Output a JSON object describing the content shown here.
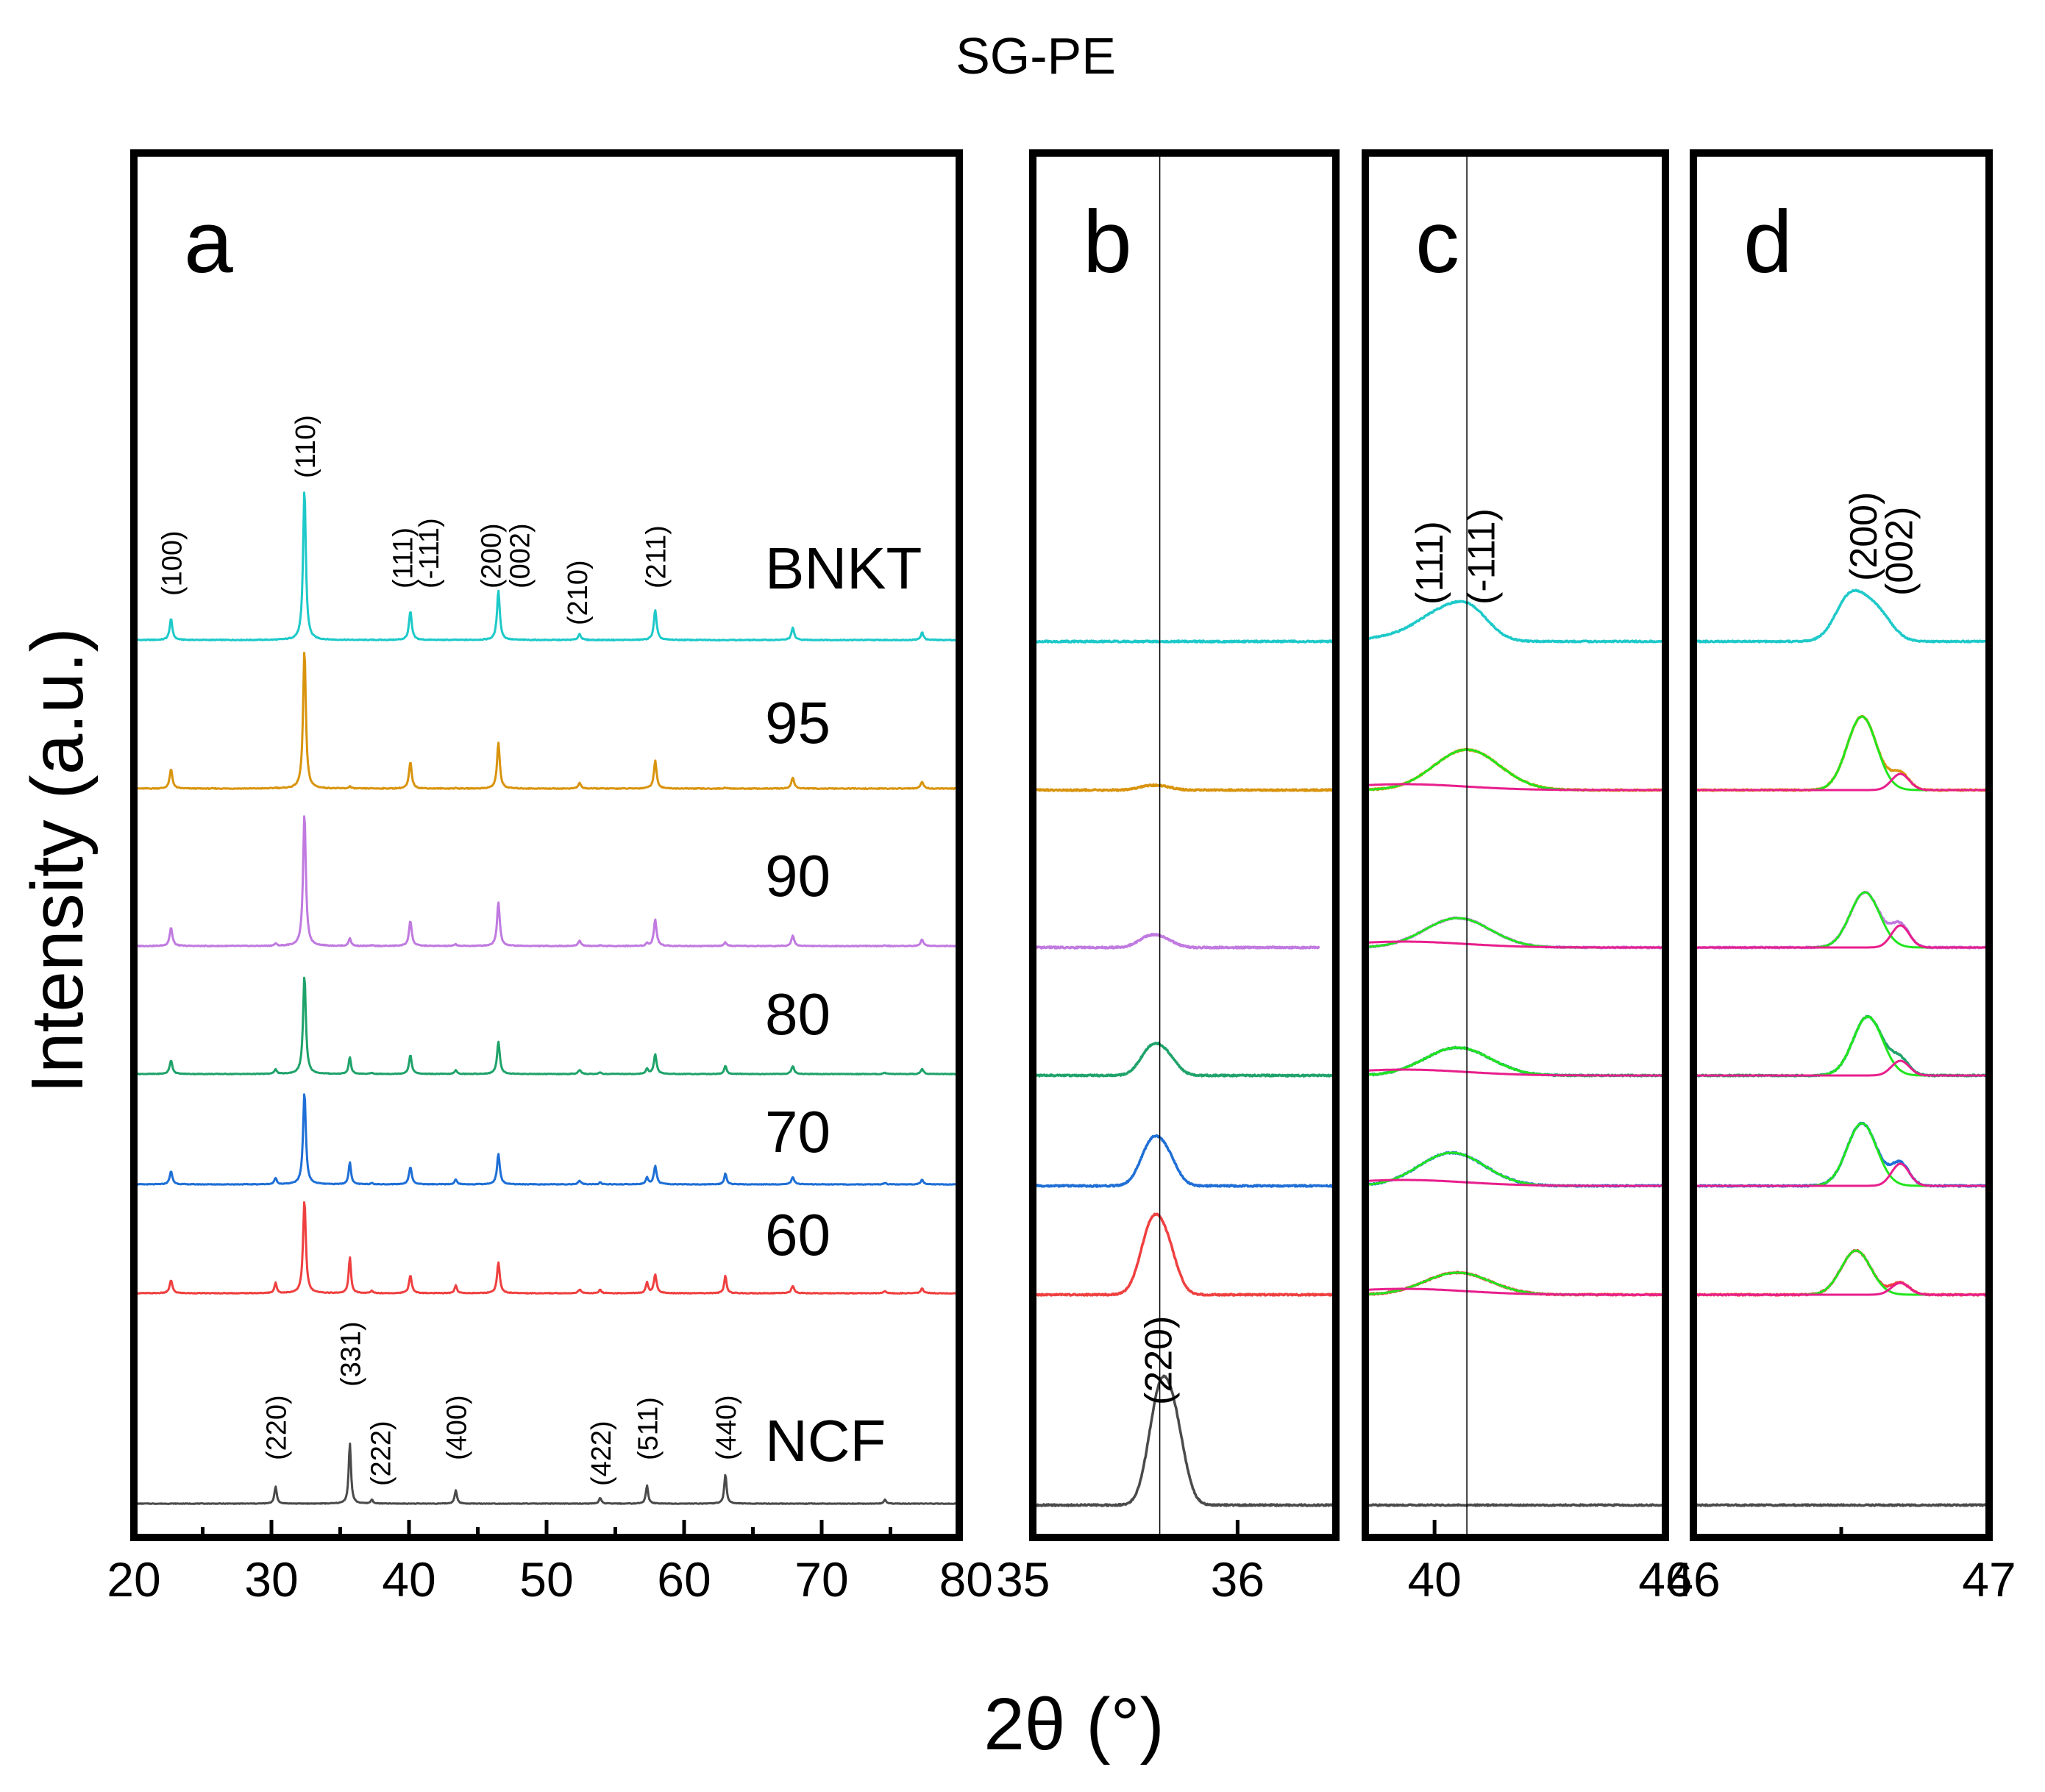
{
  "chart_data": {
    "type": "line",
    "title": "SG-PE",
    "xlabel": "2θ (°)",
    "ylabel": "Intensity (a.u.)",
    "colors": {
      "BNKT": "#1ec9c9",
      "95": "#d9940e",
      "90": "#c07ae0",
      "80": "#1fa36a",
      "70": "#1f6fd6",
      "60": "#ef4040",
      "NCF": "#4a4a4a",
      "fit_green": "#22e51e",
      "fit_pink": "#e81e8c"
    },
    "series": [
      {
        "name": "BNKT",
        "label": "BNKT"
      },
      {
        "name": "95",
        "label": "95"
      },
      {
        "name": "90",
        "label": "90"
      },
      {
        "name": "80",
        "label": "80"
      },
      {
        "name": "70",
        "label": "70"
      },
      {
        "name": "60",
        "label": "60"
      },
      {
        "name": "NCF",
        "label": "NCF"
      }
    ],
    "panels": [
      {
        "id": "a",
        "label": "a",
        "xlim": [
          20,
          80
        ],
        "ticks": [
          20,
          30,
          40,
          50,
          60,
          70,
          80
        ],
        "tick_labels": [
          "20",
          "30",
          "40",
          "50",
          "60",
          "70",
          "80"
        ],
        "bnkt_peaks": [
          {
            "pos": 22.7,
            "height": 0.14
          },
          {
            "pos": 32.4,
            "height": 1.0
          },
          {
            "pos": 40.1,
            "height": 0.19
          },
          {
            "pos": 46.5,
            "height": 0.33
          },
          {
            "pos": 52.4,
            "height": 0.04
          },
          {
            "pos": 57.9,
            "height": 0.2
          },
          {
            "pos": 67.9,
            "height": 0.08
          },
          {
            "pos": 77.3,
            "height": 0.05
          }
        ],
        "ncf_peaks": [
          {
            "pos": 30.3,
            "height": 0.18
          },
          {
            "pos": 35.7,
            "height": 0.63
          },
          {
            "pos": 37.3,
            "height": 0.04
          },
          {
            "pos": 43.4,
            "height": 0.14
          },
          {
            "pos": 53.9,
            "height": 0.06
          },
          {
            "pos": 57.3,
            "height": 0.19
          },
          {
            "pos": 63.0,
            "height": 0.31
          },
          {
            "pos": 74.6,
            "height": 0.04
          }
        ],
        "annotations_bnkt": [
          {
            "text": "(100)",
            "x": 22.7
          },
          {
            "text": "(110)",
            "x": 32.4
          },
          {
            "text": "(111)",
            "x": 39.5
          },
          {
            "text": "(-111)",
            "x": 41.4
          },
          {
            "text": "(200)",
            "x": 45.9
          },
          {
            "text": "(002)",
            "x": 48.0
          },
          {
            "text": "(210)",
            "x": 52.2
          },
          {
            "text": "(211)",
            "x": 57.9
          }
        ],
        "annotations_ncf": [
          {
            "text": "(220)",
            "x": 30.3
          },
          {
            "text": "(331)",
            "x": 35.7
          },
          {
            "text": "(222)",
            "x": 37.9
          },
          {
            "text": "(400)",
            "x": 43.4
          },
          {
            "text": "(422)",
            "x": 53.9
          },
          {
            "text": "(511)",
            "x": 57.3
          },
          {
            "text": "(440)",
            "x": 63.0
          }
        ]
      },
      {
        "id": "b",
        "label": "b",
        "xlim": [
          35,
          36.48
        ],
        "ticks": [
          35,
          36
        ],
        "tick_labels": [
          "35",
          "36"
        ],
        "reference_line": 35.62,
        "annotation": {
          "text": "(220)",
          "x": 35.62
        }
      },
      {
        "id": "c",
        "label": "c",
        "xlim": [
          38.2,
          46
        ],
        "ticks": [
          40,
          46
        ],
        "tick_labels": [
          "40",
          "46"
        ],
        "reference_line": 40.84,
        "annotations": [
          {
            "text": "(111)",
            "x": 39.9
          },
          {
            "text": "(-111)",
            "x": 41.25
          }
        ]
      },
      {
        "id": "d",
        "label": "d",
        "xlim": [
          46,
          47
        ],
        "ticks": [
          46,
          47
        ],
        "tick_labels": [
          "46",
          "47"
        ],
        "annotations": [
          {
            "text": "(200)",
            "x": 46.58
          },
          {
            "text": "(002)",
            "x": 46.7
          }
        ]
      }
    ]
  }
}
